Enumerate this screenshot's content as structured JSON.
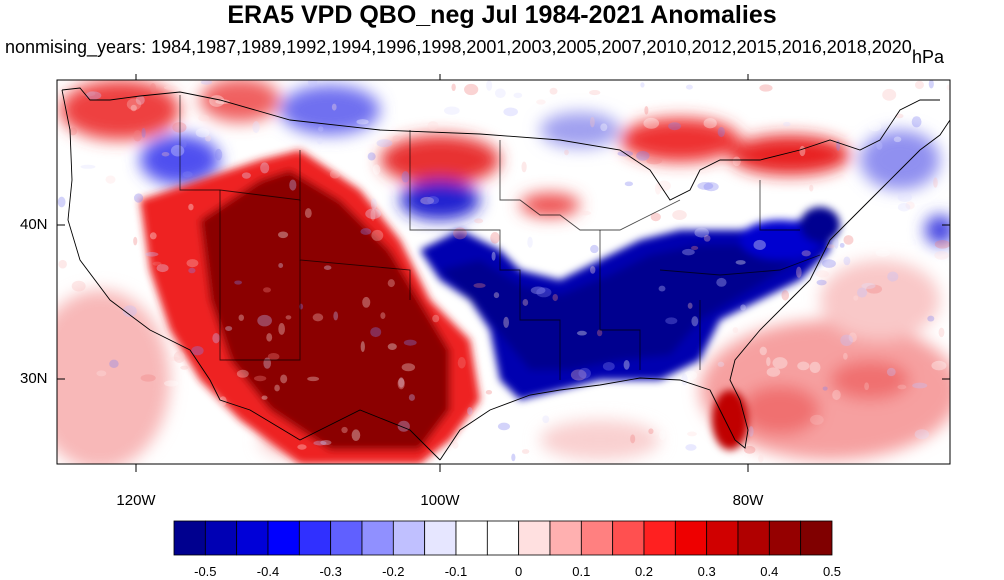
{
  "title": "ERA5 VPD QBO_neg Jul 1984-2021 Anomalies",
  "subtitle": "nonmising_years: 1984,1987,1989,1992,1994,1996,1998,2001,2003,2005,2007,2010,2012,2015,2016,2018,2020",
  "units": "hPa",
  "lat_labels": [
    "40N",
    "30N"
  ],
  "lon_labels": [
    "120W",
    "100W",
    "80W"
  ],
  "colorbar": {
    "labels": [
      "-0.5",
      "-0.4",
      "-0.3",
      "-0.2",
      "-0.1",
      "0",
      "0.1",
      "0.2",
      "0.3",
      "0.4",
      "0.5"
    ],
    "colors": [
      "#00008f",
      "#0000b4",
      "#0000d8",
      "#0000ff",
      "#3030ff",
      "#6060ff",
      "#9090ff",
      "#c0c0ff",
      "#e6e6ff",
      "#ffffff",
      "#ffffff",
      "#ffe0e0",
      "#ffb0b0",
      "#ff8080",
      "#ff5050",
      "#ff2020",
      "#ee0000",
      "#d00000",
      "#b00000",
      "#950000",
      "#800000"
    ]
  },
  "colors": {
    "dark_red": "#8b0000",
    "red": "#e01010",
    "light_red": "#f8a0a0",
    "dark_blue": "#00008f",
    "blue": "#2020e0",
    "light_blue": "#a8a8f0"
  }
}
